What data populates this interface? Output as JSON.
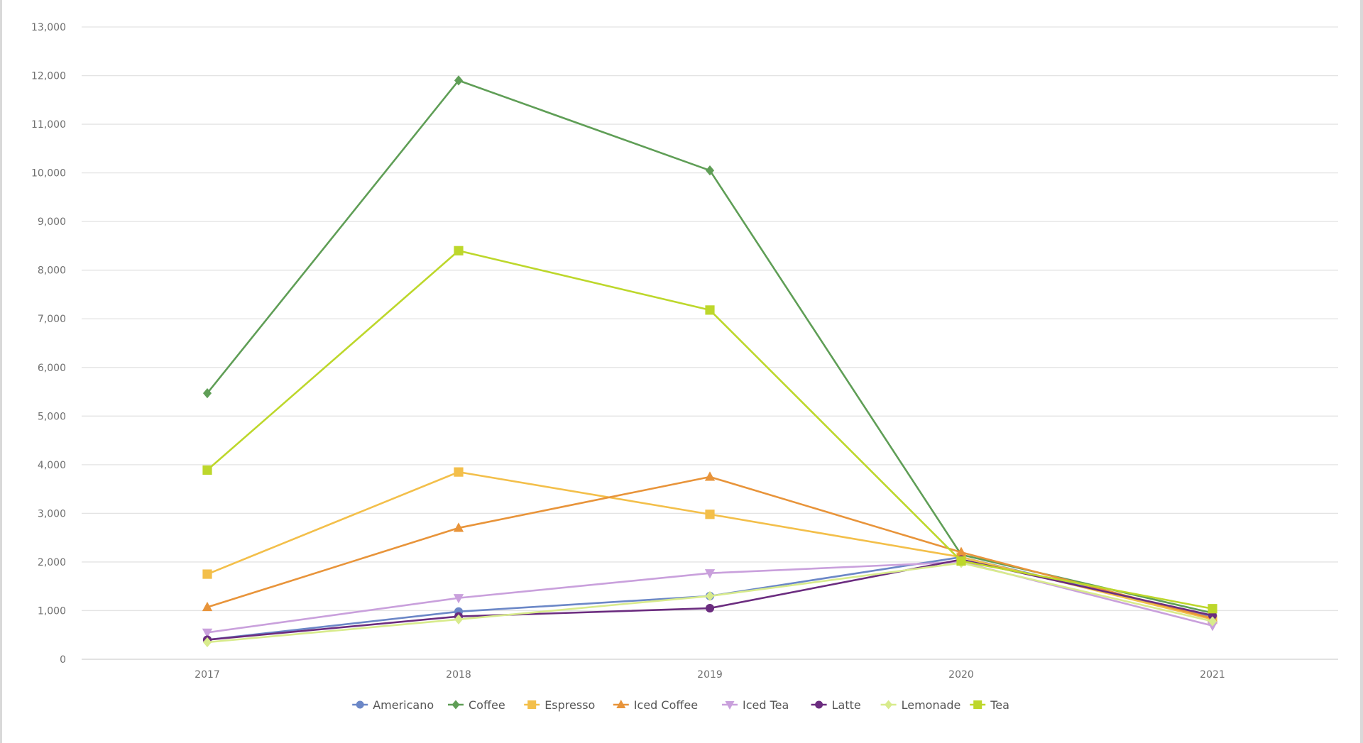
{
  "chart_data": {
    "type": "line",
    "title": "",
    "xlabel": "",
    "ylabel": "",
    "categories": [
      "2017",
      "2018",
      "2019",
      "2020",
      "2021"
    ],
    "ylim": [
      0,
      13000
    ],
    "yticks": [
      0,
      1000,
      2000,
      3000,
      4000,
      5000,
      6000,
      7000,
      8000,
      9000,
      10000,
      11000,
      12000,
      13000
    ],
    "ytick_labels": [
      "0",
      "1,000",
      "2,000",
      "3,000",
      "4,000",
      "5,000",
      "6,000",
      "7,000",
      "8,000",
      "9,000",
      "10,000",
      "11,000",
      "12,000",
      "13,000"
    ],
    "grid": true,
    "legend_position": "bottom",
    "series": [
      {
        "name": "Americano",
        "color": "#6b87c7",
        "marker": "circle",
        "values": [
          400,
          980,
          1300,
          2100,
          860
        ]
      },
      {
        "name": "Coffee",
        "color": "#5f9e56",
        "marker": "diamond",
        "values": [
          5470,
          11900,
          10050,
          2150,
          950
        ]
      },
      {
        "name": "Espresso",
        "color": "#f3bf4a",
        "marker": "square",
        "values": [
          1750,
          3850,
          2980,
          2100,
          820
        ]
      },
      {
        "name": "Iced Coffee",
        "color": "#e8943a",
        "marker": "triangle",
        "values": [
          1070,
          2700,
          3750,
          2200,
          840
        ]
      },
      {
        "name": "Iced Tea",
        "color": "#c9a0dc",
        "marker": "triangle-down",
        "values": [
          550,
          1260,
          1770,
          2000,
          690
        ]
      },
      {
        "name": "Latte",
        "color": "#6b2c7f",
        "marker": "circle",
        "values": [
          400,
          880,
          1050,
          2050,
          900
        ]
      },
      {
        "name": "Lemonade",
        "color": "#d8eb8c",
        "marker": "diamond",
        "values": [
          350,
          820,
          1300,
          1980,
          780
        ]
      },
      {
        "name": "Tea",
        "color": "#bdd72b",
        "marker": "square",
        "values": [
          3890,
          8400,
          7180,
          2020,
          1040
        ]
      }
    ]
  }
}
